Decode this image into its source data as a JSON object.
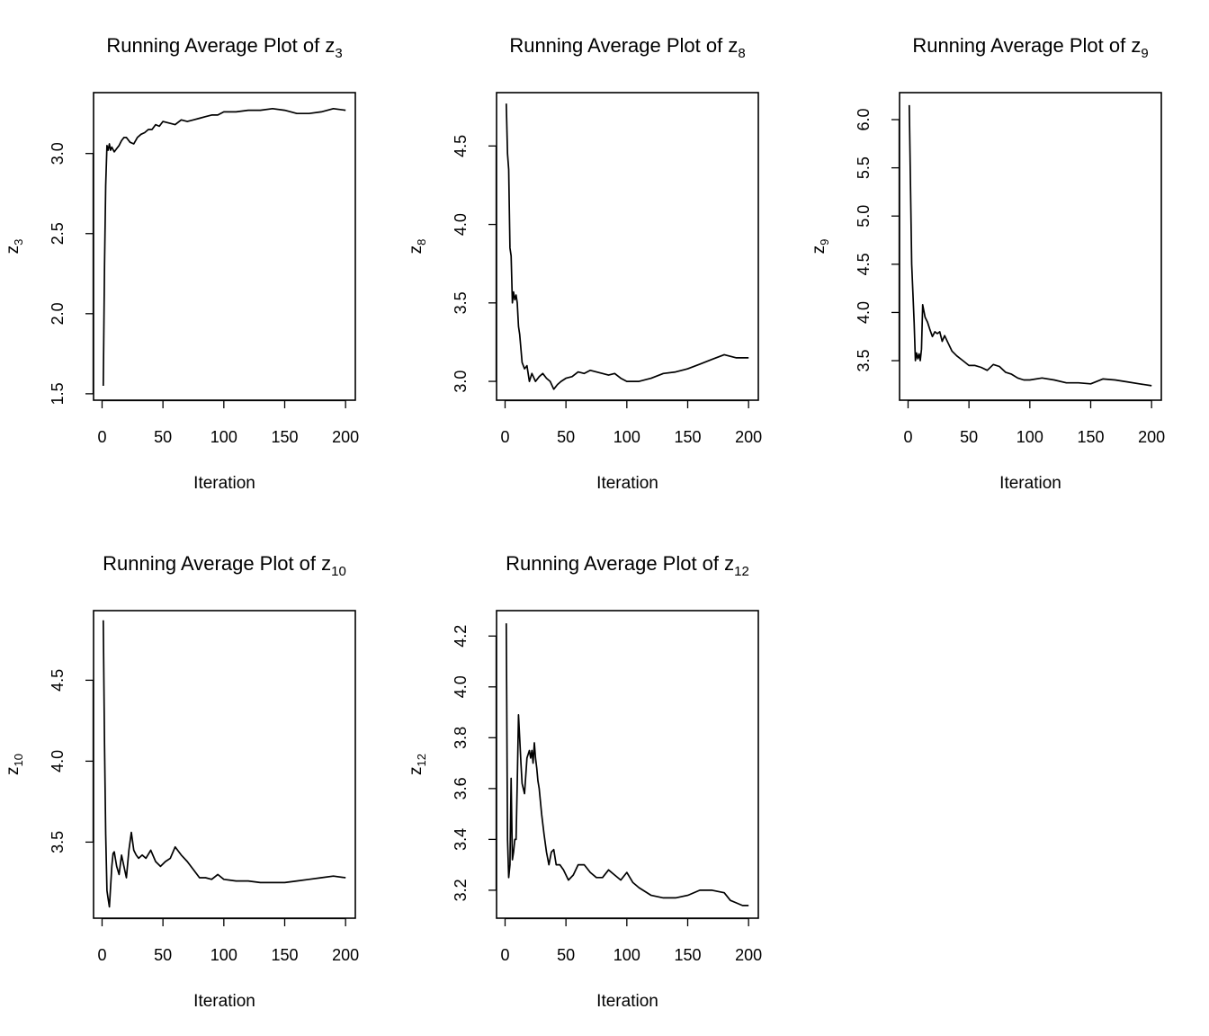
{
  "chart_data": [
    {
      "type": "line",
      "title": "Running Average Plot of z",
      "title_sub": "3",
      "xlabel": "Iteration",
      "ylabel": "z",
      "ylabel_sub": "3",
      "xlim": [
        -7,
        208
      ],
      "ylim": [
        1.46,
        3.38
      ],
      "xticks": [
        0,
        50,
        100,
        150,
        200
      ],
      "yticks": [
        1.5,
        2.0,
        2.5,
        3.0
      ],
      "ytick_labels": [
        "1.5",
        "2.0",
        "2.5",
        "3.0"
      ],
      "grid": false,
      "series": [
        {
          "x": [
            1,
            2,
            3,
            4,
            5,
            6,
            7,
            8,
            10,
            12,
            14,
            16,
            18,
            20,
            23,
            26,
            29,
            32,
            35,
            38,
            41,
            44,
            47,
            50,
            55,
            60,
            65,
            70,
            75,
            80,
            85,
            90,
            95,
            100,
            110,
            120,
            130,
            140,
            150,
            160,
            170,
            180,
            190,
            200
          ],
          "y": [
            1.55,
            2.3,
            2.8,
            3.05,
            3.02,
            3.06,
            3.02,
            3.04,
            3.01,
            3.03,
            3.05,
            3.08,
            3.1,
            3.1,
            3.07,
            3.06,
            3.1,
            3.12,
            3.13,
            3.15,
            3.15,
            3.18,
            3.17,
            3.2,
            3.19,
            3.18,
            3.21,
            3.2,
            3.21,
            3.22,
            3.23,
            3.24,
            3.24,
            3.26,
            3.26,
            3.27,
            3.27,
            3.28,
            3.27,
            3.25,
            3.25,
            3.26,
            3.28,
            3.27
          ]
        }
      ]
    },
    {
      "type": "line",
      "title": "Running Average Plot of z",
      "title_sub": "8",
      "xlabel": "Iteration",
      "ylabel": "z",
      "ylabel_sub": "8",
      "xlim": [
        -7,
        208
      ],
      "ylim": [
        2.88,
        4.84
      ],
      "xticks": [
        0,
        50,
        100,
        150,
        200
      ],
      "yticks": [
        3.0,
        3.5,
        4.0,
        4.5
      ],
      "ytick_labels": [
        "3.0",
        "3.5",
        "4.0",
        "4.5"
      ],
      "grid": false,
      "series": [
        {
          "x": [
            1,
            2,
            3,
            4,
            5,
            6,
            7,
            8,
            9,
            10,
            11,
            12,
            14,
            16,
            18,
            20,
            22,
            25,
            28,
            31,
            34,
            37,
            40,
            43,
            46,
            50,
            55,
            60,
            65,
            70,
            75,
            80,
            85,
            90,
            95,
            100,
            110,
            120,
            130,
            140,
            150,
            160,
            170,
            180,
            190,
            200
          ],
          "y": [
            4.77,
            4.45,
            4.35,
            3.85,
            3.8,
            3.5,
            3.57,
            3.52,
            3.55,
            3.5,
            3.35,
            3.3,
            3.12,
            3.08,
            3.1,
            3.0,
            3.05,
            3.0,
            3.03,
            3.05,
            3.02,
            3.0,
            2.95,
            2.98,
            3.0,
            3.02,
            3.03,
            3.06,
            3.05,
            3.07,
            3.06,
            3.05,
            3.04,
            3.05,
            3.02,
            3.0,
            3.0,
            3.02,
            3.05,
            3.06,
            3.08,
            3.11,
            3.14,
            3.17,
            3.15,
            3.15
          ]
        }
      ]
    },
    {
      "type": "line",
      "title": "Running Average Plot of z",
      "title_sub": "9",
      "xlabel": "Iteration",
      "ylabel": "z",
      "ylabel_sub": "9",
      "xlim": [
        -7,
        208
      ],
      "ylim": [
        3.09,
        6.28
      ],
      "xticks": [
        0,
        50,
        100,
        150,
        200
      ],
      "yticks": [
        3.5,
        4.0,
        4.5,
        5.0,
        5.5,
        6.0
      ],
      "ytick_labels": [
        "3.5",
        "4.0",
        "4.5",
        "5.0",
        "5.5",
        "6.0"
      ],
      "grid": false,
      "series": [
        {
          "x": [
            1,
            3,
            5,
            6,
            7,
            8,
            9,
            10,
            11,
            12,
            14,
            16,
            18,
            20,
            22,
            24,
            26,
            28,
            30,
            33,
            36,
            40,
            45,
            50,
            55,
            60,
            65,
            70,
            75,
            80,
            85,
            90,
            95,
            100,
            110,
            120,
            130,
            140,
            150,
            160,
            170,
            180,
            190,
            200
          ],
          "y": [
            6.15,
            4.5,
            3.9,
            3.5,
            3.58,
            3.52,
            3.57,
            3.5,
            3.62,
            4.08,
            3.95,
            3.9,
            3.82,
            3.75,
            3.8,
            3.78,
            3.8,
            3.7,
            3.76,
            3.68,
            3.6,
            3.55,
            3.5,
            3.45,
            3.45,
            3.43,
            3.4,
            3.46,
            3.44,
            3.38,
            3.36,
            3.32,
            3.3,
            3.3,
            3.32,
            3.3,
            3.27,
            3.27,
            3.26,
            3.31,
            3.3,
            3.28,
            3.26,
            3.24
          ]
        }
      ]
    },
    {
      "type": "line",
      "title": "Running Average Plot of z",
      "title_sub": "10",
      "xlabel": "Iteration",
      "ylabel": "z",
      "ylabel_sub": "10",
      "xlim": [
        -7,
        208
      ],
      "ylim": [
        3.03,
        4.93
      ],
      "xticks": [
        0,
        50,
        100,
        150,
        200
      ],
      "yticks": [
        3.5,
        4.0,
        4.5
      ],
      "ytick_labels": [
        "3.5",
        "4.0",
        "4.5"
      ],
      "grid": false,
      "series": [
        {
          "x": [
            1,
            2,
            3,
            4,
            5,
            6,
            7,
            8,
            9,
            10,
            12,
            14,
            16,
            18,
            20,
            22,
            24,
            26,
            28,
            30,
            33,
            36,
            40,
            44,
            48,
            52,
            56,
            60,
            65,
            70,
            75,
            80,
            85,
            90,
            95,
            100,
            110,
            120,
            130,
            140,
            150,
            160,
            170,
            180,
            190,
            200
          ],
          "y": [
            4.87,
            4.1,
            3.55,
            3.2,
            3.15,
            3.1,
            3.22,
            3.35,
            3.43,
            3.44,
            3.35,
            3.3,
            3.42,
            3.35,
            3.28,
            3.45,
            3.56,
            3.45,
            3.42,
            3.4,
            3.42,
            3.4,
            3.45,
            3.38,
            3.35,
            3.38,
            3.4,
            3.47,
            3.42,
            3.38,
            3.33,
            3.28,
            3.28,
            3.27,
            3.3,
            3.27,
            3.26,
            3.26,
            3.25,
            3.25,
            3.25,
            3.26,
            3.27,
            3.28,
            3.29,
            3.28
          ]
        }
      ]
    },
    {
      "type": "line",
      "title": "Running Average Plot of z",
      "title_sub": "12",
      "xlabel": "Iteration",
      "ylabel": "z",
      "ylabel_sub": "12",
      "xlim": [
        -7,
        208
      ],
      "ylim": [
        3.09,
        4.3
      ],
      "xticks": [
        0,
        50,
        100,
        150,
        200
      ],
      "yticks": [
        3.2,
        3.4,
        3.6,
        3.8,
        4.0,
        4.2
      ],
      "ytick_labels": [
        "3.2",
        "3.4",
        "3.6",
        "3.8",
        "4.0",
        "4.2"
      ],
      "grid": false,
      "series": [
        {
          "x": [
            1,
            2,
            3,
            4,
            5,
            6,
            7,
            8,
            9,
            10,
            11,
            12,
            13,
            14,
            16,
            18,
            20,
            21,
            22,
            23,
            24,
            25,
            26,
            27,
            28,
            30,
            32,
            34,
            36,
            38,
            40,
            42,
            45,
            48,
            52,
            56,
            60,
            65,
            70,
            75,
            80,
            85,
            90,
            95,
            100,
            105,
            110,
            120,
            130,
            140,
            150,
            160,
            170,
            180,
            185,
            190,
            195,
            200
          ],
          "y": [
            4.25,
            3.4,
            3.25,
            3.3,
            3.64,
            3.32,
            3.35,
            3.4,
            3.4,
            3.62,
            3.89,
            3.8,
            3.7,
            3.62,
            3.58,
            3.72,
            3.75,
            3.72,
            3.75,
            3.7,
            3.78,
            3.72,
            3.68,
            3.63,
            3.6,
            3.5,
            3.42,
            3.35,
            3.3,
            3.35,
            3.36,
            3.3,
            3.3,
            3.28,
            3.24,
            3.26,
            3.3,
            3.3,
            3.27,
            3.25,
            3.25,
            3.28,
            3.26,
            3.24,
            3.27,
            3.23,
            3.21,
            3.18,
            3.17,
            3.17,
            3.18,
            3.2,
            3.2,
            3.19,
            3.16,
            3.15,
            3.14,
            3.14
          ]
        }
      ]
    }
  ]
}
